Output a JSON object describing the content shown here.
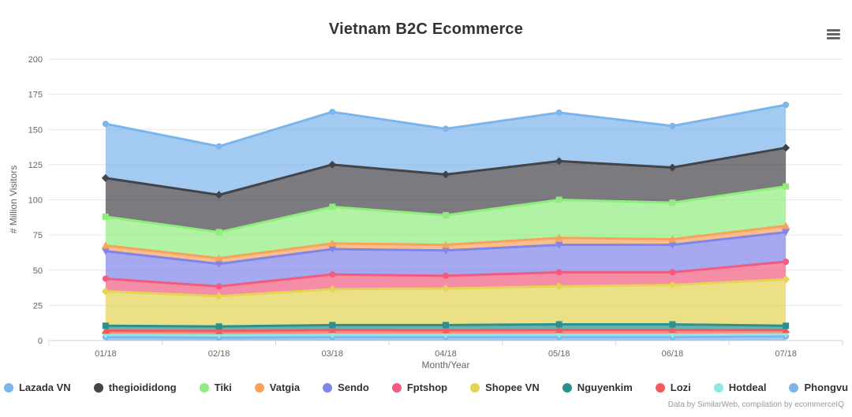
{
  "page": {
    "credits": "Data by SimilarWeb, compilation by ecommerceIQ"
  },
  "toolbar": {
    "menu_icon": "hamburger-icon"
  },
  "chart_data": {
    "type": "area",
    "stacking": "normal",
    "title": "Vietnam B2C Ecommerce",
    "xlabel": "Month/Year",
    "ylabel": "# Million Visitors",
    "ylim": [
      0,
      200
    ],
    "yticks": [
      0,
      25,
      50,
      75,
      100,
      125,
      150,
      175,
      200
    ],
    "grid": true,
    "legend_position": "bottom",
    "categories": [
      "01/18",
      "02/18",
      "03/18",
      "04/18",
      "05/18",
      "06/18",
      "07/18"
    ],
    "stack_order_bottom_to_top": [
      "Phongvu",
      "Hotdeal",
      "Lozi",
      "Nguyenkim",
      "Shopee VN",
      "Fptshop",
      "Sendo",
      "Vatgia",
      "Tiki",
      "thegioididong",
      "Lazada VN"
    ],
    "series": [
      {
        "name": "Lazada VN",
        "color": "#7cb5ec",
        "marker": "circle",
        "values": [
          38.5,
          34.5,
          37.5,
          32.5,
          34.5,
          29.5,
          30.5
        ]
      },
      {
        "name": "thegioididong",
        "color": "#434348",
        "marker": "diamond",
        "values": [
          27.5,
          26.5,
          30,
          29,
          27.5,
          25,
          27.5
        ]
      },
      {
        "name": "Tiki",
        "color": "#90ed7d",
        "marker": "square",
        "values": [
          20.5,
          18.5,
          26,
          21,
          27,
          26,
          28
        ]
      },
      {
        "name": "Vatgia",
        "color": "#f7a35c",
        "marker": "triangle",
        "values": [
          4,
          4,
          4,
          4,
          5,
          4,
          4.5
        ]
      },
      {
        "name": "Sendo",
        "color": "#8085e9",
        "marker": "triangle-down",
        "values": [
          19.5,
          16,
          18,
          18,
          19.5,
          19.5,
          21
        ]
      },
      {
        "name": "Fptshop",
        "color": "#f15c80",
        "marker": "circle",
        "values": [
          9,
          7,
          10.5,
          9,
          10,
          9,
          12.5
        ]
      },
      {
        "name": "Shopee VN",
        "color": "#e4d354",
        "marker": "diamond",
        "values": [
          24.5,
          21.5,
          25.5,
          26,
          27,
          28,
          33
        ]
      },
      {
        "name": "Nguyenkim",
        "color": "#2b908f",
        "marker": "square",
        "values": [
          3.5,
          3.2,
          3.5,
          3.7,
          4,
          4,
          3
        ]
      },
      {
        "name": "Lozi",
        "color": "#f45b5b",
        "marker": "triangle",
        "values": [
          3,
          3,
          3.5,
          3.3,
          3.5,
          3.5,
          3
        ]
      },
      {
        "name": "Hotdeal",
        "color": "#91e8e1",
        "marker": "triangle-down",
        "values": [
          1.5,
          1.8,
          1.5,
          1.5,
          1.5,
          1.5,
          1.5
        ]
      },
      {
        "name": "Phongvu",
        "color": "#7cb5ec",
        "marker": "circle",
        "values": [
          2.5,
          2,
          2.5,
          2.5,
          2.5,
          2.5,
          3
        ]
      }
    ],
    "totals_by_month": [
      154,
      138,
      162.5,
      150.5,
      162,
      152.5,
      167.5
    ],
    "colors": {
      "grid": "#e6e6e6",
      "axis_line": "#ccd6eb",
      "axis_text": "#666666",
      "title_text": "#333337",
      "credits_text": "#999999"
    }
  }
}
